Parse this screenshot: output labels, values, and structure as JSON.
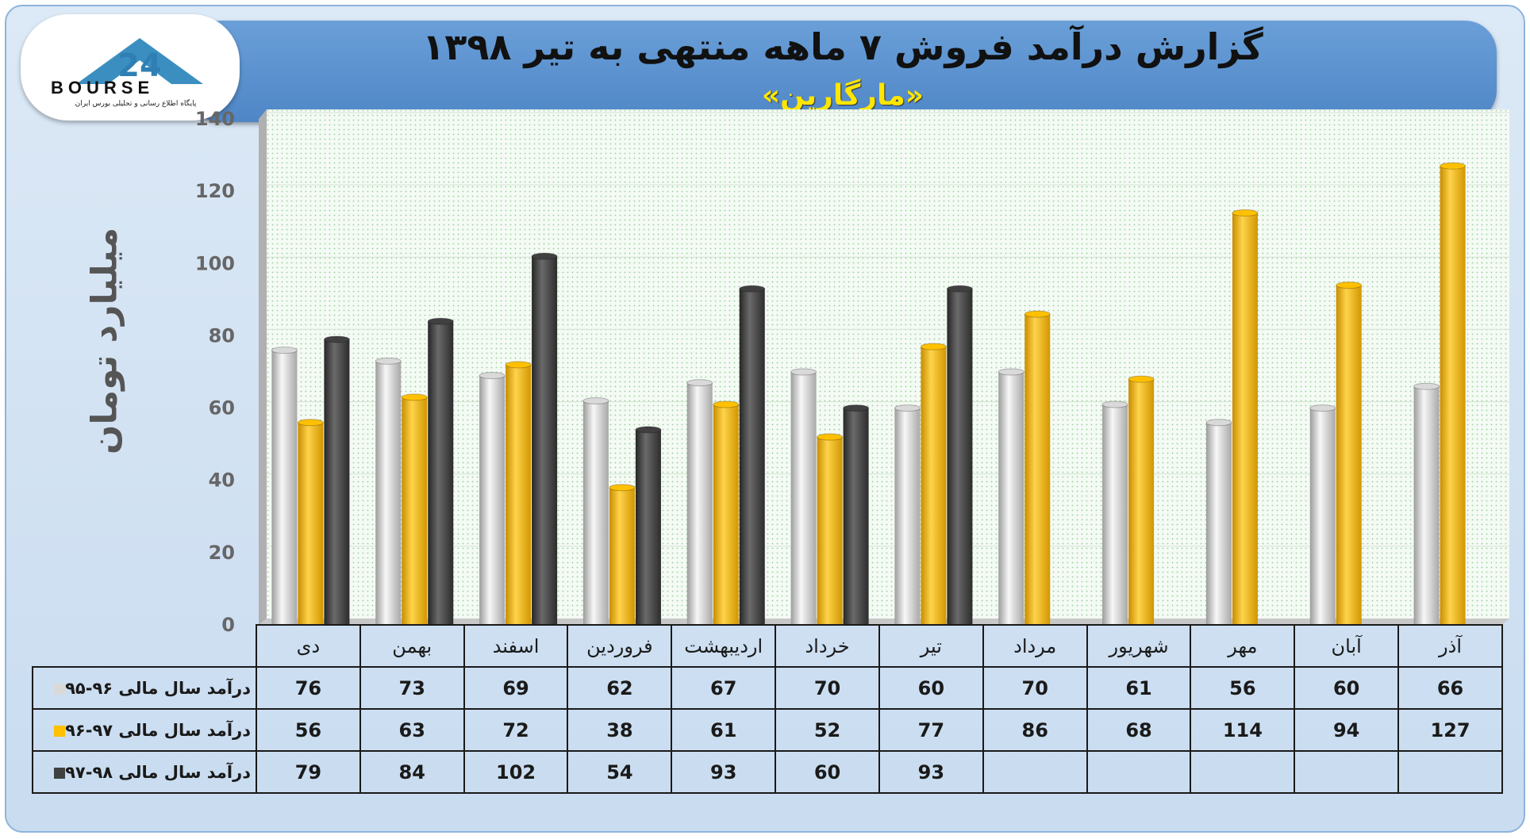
{
  "header": {
    "title": "گزارش درآمد فروش ۷ ماهه منتهی به تیر ۱۳۹۸",
    "subtitle": "«مارگارین»"
  },
  "logo": {
    "text": "BOURSE",
    "subtitle": "پایگاه اطلاع رسانی و تحلیلی بورس ایران"
  },
  "colors": {
    "series1": "#d9d9d9",
    "series2": "#ffc000",
    "series3": "#404040"
  },
  "chart_data": {
    "type": "bar",
    "title": "گزارش درآمد فروش ۷ ماهه منتهی به تیر ۱۳۹۸",
    "ylabel": "میلیارد تومان",
    "xlabel": "",
    "ylim": [
      0,
      140
    ],
    "yticks": [
      0,
      20,
      40,
      60,
      80,
      100,
      120,
      140
    ],
    "grid": true,
    "categories": [
      "دی",
      "بهمن",
      "اسفند",
      "فروردین",
      "اردیبهشت",
      "خرداد",
      "تیر",
      "مرداد",
      "شهریور",
      "مهر",
      "آبان",
      "آذر"
    ],
    "series": [
      {
        "name": "درآمد سال مالی ۹۶-۹۵",
        "color": "#d9d9d9",
        "values": [
          76,
          73,
          69,
          62,
          67,
          70,
          60,
          70,
          61,
          56,
          60,
          66
        ]
      },
      {
        "name": "درآمد سال مالی ۹۷-۹۶",
        "color": "#ffc000",
        "values": [
          56,
          63,
          72,
          38,
          61,
          52,
          77,
          86,
          68,
          114,
          94,
          127
        ]
      },
      {
        "name": "درآمد سال مالی ۹۸-۹۷",
        "color": "#404040",
        "values": [
          79,
          84,
          102,
          54,
          93,
          60,
          93,
          null,
          null,
          null,
          null,
          null
        ]
      }
    ]
  }
}
